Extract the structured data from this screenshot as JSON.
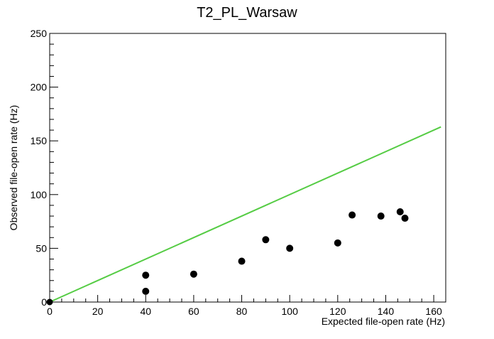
{
  "chart_data": {
    "type": "scatter",
    "title": "T2_PL_Warsaw",
    "xlabel": "Expected file-open rate (Hz)",
    "ylabel": "Observed file-open rate (Hz)",
    "xlim": [
      0,
      165
    ],
    "ylim": [
      0,
      250
    ],
    "x_ticks": [
      0,
      20,
      40,
      60,
      80,
      100,
      120,
      140,
      160
    ],
    "y_ticks": [
      0,
      50,
      100,
      150,
      200,
      250
    ],
    "x_tick_labels": [
      "0",
      "20",
      "40",
      "60",
      "80",
      "100",
      "120",
      "140",
      "160"
    ],
    "y_tick_labels": [
      "0",
      "50",
      "100",
      "150",
      "200",
      "250"
    ],
    "grid": false,
    "legend": "none",
    "series": [
      {
        "type": "scatter",
        "color": "#000000",
        "points": [
          [
            0,
            0
          ],
          [
            40,
            10
          ],
          [
            40,
            25
          ],
          [
            60,
            26
          ],
          [
            80,
            38
          ],
          [
            90,
            58
          ],
          [
            100,
            50
          ],
          [
            120,
            55
          ],
          [
            126,
            81
          ],
          [
            138,
            80
          ],
          [
            146,
            84
          ],
          [
            148,
            78
          ]
        ]
      },
      {
        "type": "line",
        "color": "#55cc44",
        "points": [
          [
            0,
            0
          ],
          [
            163,
            163
          ]
        ]
      }
    ]
  }
}
